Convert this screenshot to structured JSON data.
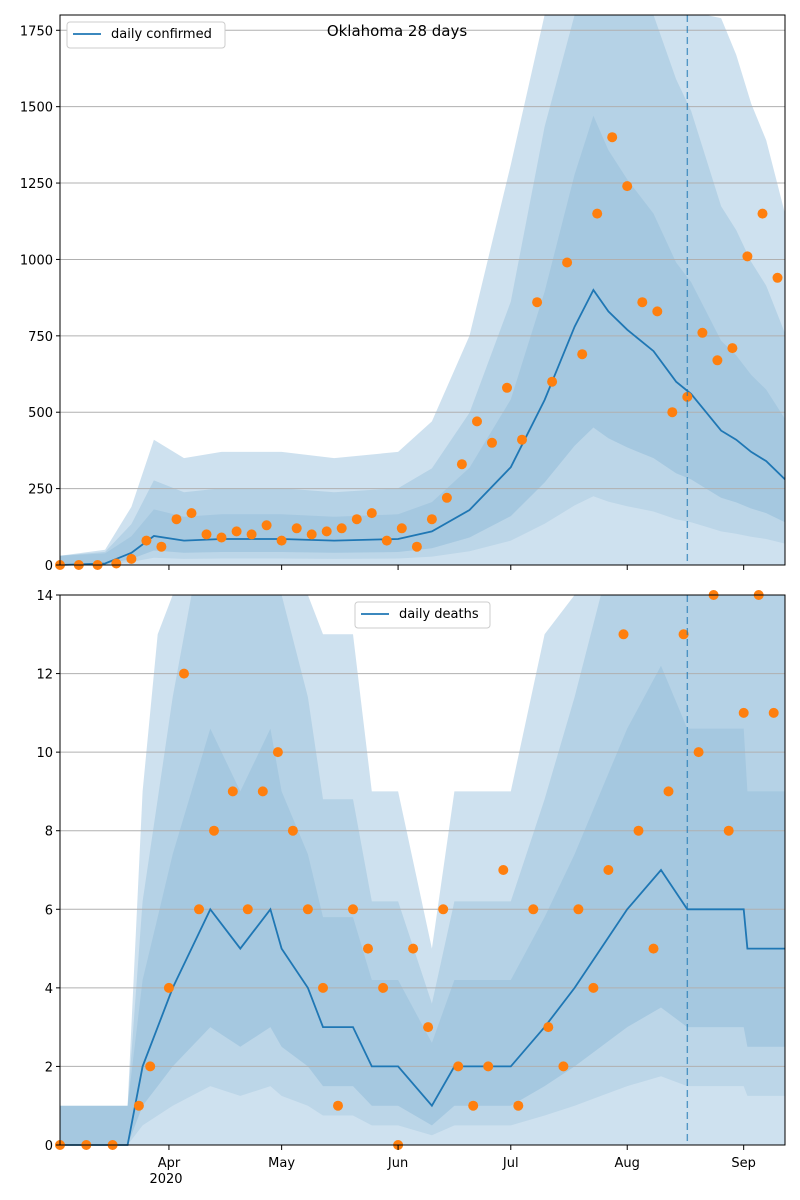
{
  "colors": {
    "line": "#1f77b4",
    "points": "#ff7f0e",
    "band": "#1f77b4",
    "grid": "#b0b0b0",
    "forecast_start": "#1f77b4"
  },
  "x_axis": {
    "ticks": [
      {
        "date": "2020-04-01",
        "label": "Apr"
      },
      {
        "date": "2020-05-01",
        "label": "May"
      },
      {
        "date": "2020-06-01",
        "label": "Jun"
      },
      {
        "date": "2020-07-01",
        "label": "Jul"
      },
      {
        "date": "2020-08-01",
        "label": "Aug"
      },
      {
        "date": "2020-09-01",
        "label": "Sep"
      }
    ],
    "year_label": "2020",
    "range": [
      "2020-03-03",
      "2020-09-12"
    ]
  },
  "chart_data": [
    {
      "type": "line",
      "title": "Oklahoma 28 days",
      "legend": {
        "label": "daily confirmed",
        "position": "top-left"
      },
      "ylim": [
        0,
        1800
      ],
      "yticks": [
        0,
        250,
        500,
        750,
        1000,
        1250,
        1500,
        1750
      ],
      "grid": "horizontal",
      "forecast_start": "2020-08-17",
      "series": [
        {
          "name": "daily confirmed",
          "kind": "line",
          "x": [
            "2020-03-03",
            "2020-03-15",
            "2020-03-22",
            "2020-03-28",
            "2020-04-05",
            "2020-04-15",
            "2020-05-01",
            "2020-05-15",
            "2020-06-01",
            "2020-06-10",
            "2020-06-20",
            "2020-07-01",
            "2020-07-10",
            "2020-07-18",
            "2020-07-23",
            "2020-07-27",
            "2020-08-01",
            "2020-08-08",
            "2020-08-14",
            "2020-08-18",
            "2020-08-22",
            "2020-08-26",
            "2020-08-30",
            "2020-09-03",
            "2020-09-07",
            "2020-09-12"
          ],
          "y": [
            0,
            5,
            40,
            95,
            80,
            85,
            85,
            80,
            85,
            110,
            180,
            320,
            540,
            780,
            900,
            830,
            770,
            700,
            600,
            560,
            500,
            440,
            410,
            370,
            340,
            280
          ]
        },
        {
          "name": "daily confirmed observed",
          "kind": "points",
          "x": [
            "2020-03-03",
            "2020-03-08",
            "2020-03-13",
            "2020-03-18",
            "2020-03-22",
            "2020-03-26",
            "2020-03-30",
            "2020-04-03",
            "2020-04-07",
            "2020-04-11",
            "2020-04-15",
            "2020-04-19",
            "2020-04-23",
            "2020-04-27",
            "2020-05-01",
            "2020-05-05",
            "2020-05-09",
            "2020-05-13",
            "2020-05-17",
            "2020-05-21",
            "2020-05-25",
            "2020-05-29",
            "2020-06-02",
            "2020-06-06",
            "2020-06-10",
            "2020-06-14",
            "2020-06-18",
            "2020-06-22",
            "2020-06-26",
            "2020-06-30",
            "2020-07-04",
            "2020-07-08",
            "2020-07-12",
            "2020-07-16",
            "2020-07-20",
            "2020-07-24",
            "2020-07-28",
            "2020-08-01",
            "2020-08-05",
            "2020-08-09",
            "2020-08-13",
            "2020-08-17",
            "2020-08-21",
            "2020-08-25",
            "2020-08-29",
            "2020-09-02",
            "2020-09-06",
            "2020-09-10"
          ],
          "y": [
            0,
            0,
            0,
            5,
            20,
            80,
            60,
            150,
            170,
            100,
            90,
            110,
            100,
            130,
            80,
            120,
            100,
            110,
            120,
            150,
            170,
            80,
            120,
            60,
            150,
            220,
            330,
            470,
            400,
            580,
            410,
            860,
            600,
            990,
            690,
            1150,
            1400,
            1240,
            860,
            830,
            500,
            550,
            760,
            670,
            710,
            1010,
            1150,
            940
          ]
        }
      ]
    },
    {
      "type": "line",
      "title": "",
      "legend": {
        "label": "daily deaths",
        "position": "top-center"
      },
      "ylim": [
        0,
        14
      ],
      "yticks": [
        0,
        2,
        4,
        6,
        8,
        10,
        12,
        14
      ],
      "grid": "horizontal",
      "forecast_start": "2020-08-17",
      "series": [
        {
          "name": "daily deaths",
          "kind": "line",
          "x": [
            "2020-03-03",
            "2020-03-21",
            "2020-03-25",
            "2020-03-29",
            "2020-04-02",
            "2020-04-07",
            "2020-04-12",
            "2020-04-20",
            "2020-04-28",
            "2020-05-01",
            "2020-05-08",
            "2020-05-12",
            "2020-05-20",
            "2020-05-25",
            "2020-06-01",
            "2020-06-10",
            "2020-06-16",
            "2020-06-25",
            "2020-07-01",
            "2020-07-10",
            "2020-07-18",
            "2020-07-25",
            "2020-08-01",
            "2020-08-10",
            "2020-08-17",
            "2020-08-25",
            "2020-09-01",
            "2020-09-02",
            "2020-09-12"
          ],
          "y": [
            0,
            0,
            2,
            3,
            4,
            5,
            6,
            5,
            6,
            5,
            4,
            3,
            3,
            2,
            2,
            1,
            2,
            2,
            2,
            3,
            4,
            5,
            6,
            7,
            6,
            6,
            6,
            5,
            5
          ]
        },
        {
          "name": "daily deaths observed",
          "kind": "points",
          "x": [
            "2020-03-03",
            "2020-03-10",
            "2020-03-17",
            "2020-03-24",
            "2020-03-27",
            "2020-04-01",
            "2020-04-05",
            "2020-04-09",
            "2020-04-13",
            "2020-04-18",
            "2020-04-22",
            "2020-04-26",
            "2020-04-30",
            "2020-05-04",
            "2020-05-08",
            "2020-05-12",
            "2020-05-16",
            "2020-05-20",
            "2020-05-24",
            "2020-05-28",
            "2020-06-01",
            "2020-06-05",
            "2020-06-09",
            "2020-06-13",
            "2020-06-17",
            "2020-06-21",
            "2020-06-25",
            "2020-06-29",
            "2020-07-03",
            "2020-07-07",
            "2020-07-11",
            "2020-07-15",
            "2020-07-19",
            "2020-07-23",
            "2020-07-27",
            "2020-07-31",
            "2020-08-04",
            "2020-08-08",
            "2020-08-12",
            "2020-08-16",
            "2020-08-20",
            "2020-08-24",
            "2020-08-28",
            "2020-09-01",
            "2020-09-05",
            "2020-09-09"
          ],
          "y": [
            0,
            0,
            0,
            1,
            2,
            4,
            12,
            6,
            8,
            9,
            6,
            9,
            10,
            8,
            6,
            4,
            1,
            6,
            5,
            4,
            0,
            5,
            3,
            6,
            2,
            1,
            2,
            7,
            1,
            6,
            3,
            2,
            6,
            4,
            7,
            13,
            8,
            5,
            9,
            13,
            10,
            14,
            8,
            11,
            14,
            11
          ]
        }
      ]
    }
  ]
}
